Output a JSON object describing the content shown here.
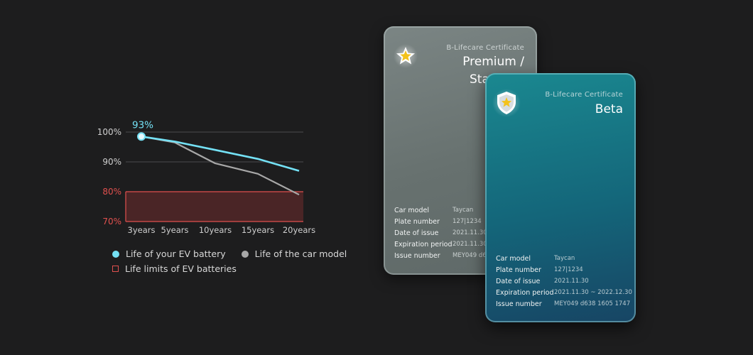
{
  "chart_data": {
    "type": "line",
    "x": [
      "3years",
      "5years",
      "10years",
      "15years",
      "20years"
    ],
    "series": [
      {
        "name": "Life of your EV battery",
        "color": "#74e1f5",
        "values": [
          98.5,
          96.8,
          94.0,
          91.0,
          87.0
        ]
      },
      {
        "name": "Life of the car model",
        "color": "#a8a8a8",
        "values": [
          98.5,
          96.5,
          89.5,
          86.0,
          79.0
        ]
      }
    ],
    "band": {
      "name": "Life limits of EV batteries",
      "from": 70,
      "to": 80,
      "color": "#e0504e"
    },
    "y_ticks": [
      "100%",
      "90%",
      "80%",
      "70%"
    ],
    "y_tick_values": [
      100,
      90,
      80,
      70
    ],
    "ylim": [
      70,
      100
    ],
    "highlight_label": "93%",
    "legend_position": "bottom-left"
  },
  "cards": {
    "back": {
      "label": "B-Lifecare Certificate",
      "title_line1": "Premium /",
      "title_line2": "Sta",
      "badge_icon": "star-icon",
      "rows": [
        {
          "key": "Car model",
          "value": "Taycan"
        },
        {
          "key": "Plate number",
          "value": "127|1234"
        },
        {
          "key": "Date of issue",
          "value": "2021.11.30"
        },
        {
          "key": "Expiration period",
          "value": "2021.11.30"
        },
        {
          "key": "Issue number",
          "value": "MEY049 d6"
        }
      ]
    },
    "front": {
      "label": "B-Lifecare Certificate",
      "title": "Beta",
      "badge_icon": "shield-star-icon",
      "rows": [
        {
          "key": "Car model",
          "value": "Taycan"
        },
        {
          "key": "Plate number",
          "value": "127|1234"
        },
        {
          "key": "Date of issue",
          "value": "2021.11.30"
        },
        {
          "key": "Expiration period",
          "value": "2021.11.30 ~ 2022.12.30"
        },
        {
          "key": "Issue number",
          "value": "MEY049 d638 1605 1747"
        }
      ]
    }
  }
}
